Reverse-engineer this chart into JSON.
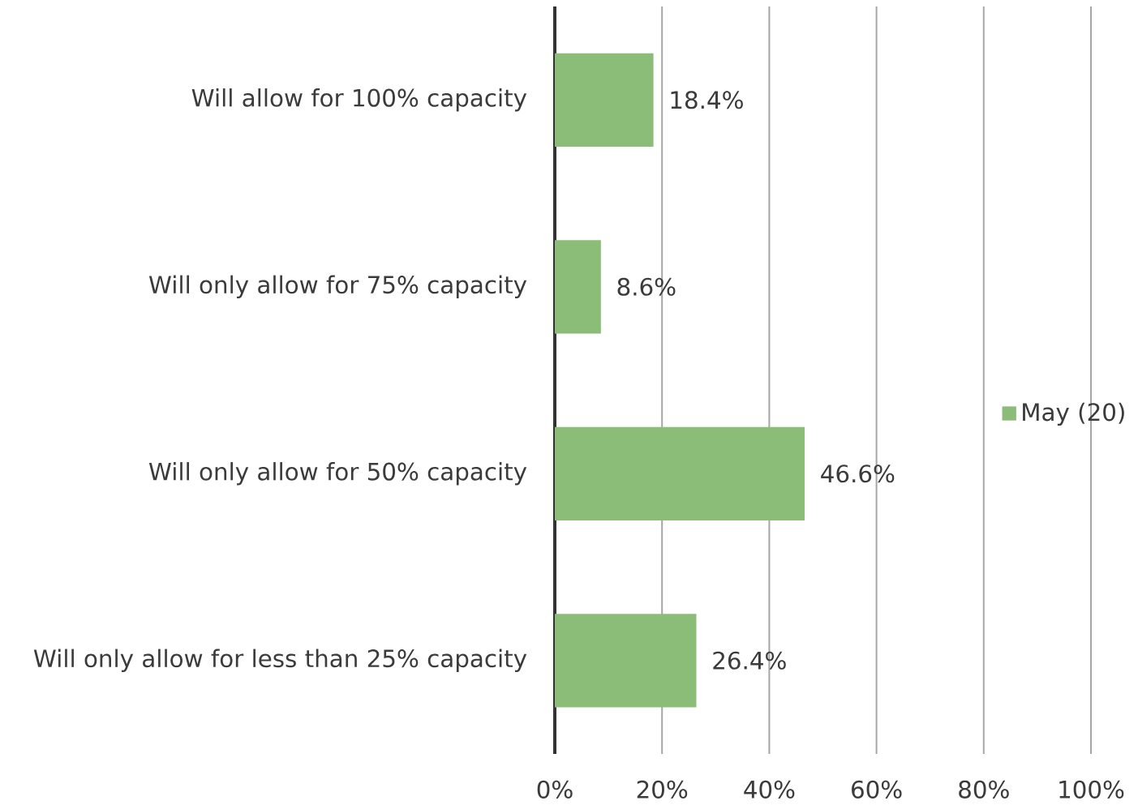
{
  "chart_data": {
    "type": "bar",
    "orientation": "horizontal",
    "categories": [
      "Will allow for 100% capacity",
      "Will only allow for 75% capacity",
      "Will only allow for 50% capacity",
      "Will only allow for less than 25% capacity"
    ],
    "series": [
      {
        "name": "May (20)",
        "color": "#8bbd78",
        "values": [
          18.4,
          8.6,
          46.6,
          26.4
        ],
        "value_labels": [
          "18.4%",
          "8.6%",
          "46.6%",
          "26.4%"
        ]
      }
    ],
    "xlim": [
      0,
      100
    ],
    "xticks": [
      {
        "value": 0,
        "label": "0%"
      },
      {
        "value": 20,
        "label": "20%"
      },
      {
        "value": 40,
        "label": "40%"
      },
      {
        "value": 60,
        "label": "60%"
      },
      {
        "value": 80,
        "label": "80%"
      },
      {
        "value": 100,
        "label": "100%"
      }
    ],
    "grid": "x",
    "legend": "right"
  }
}
